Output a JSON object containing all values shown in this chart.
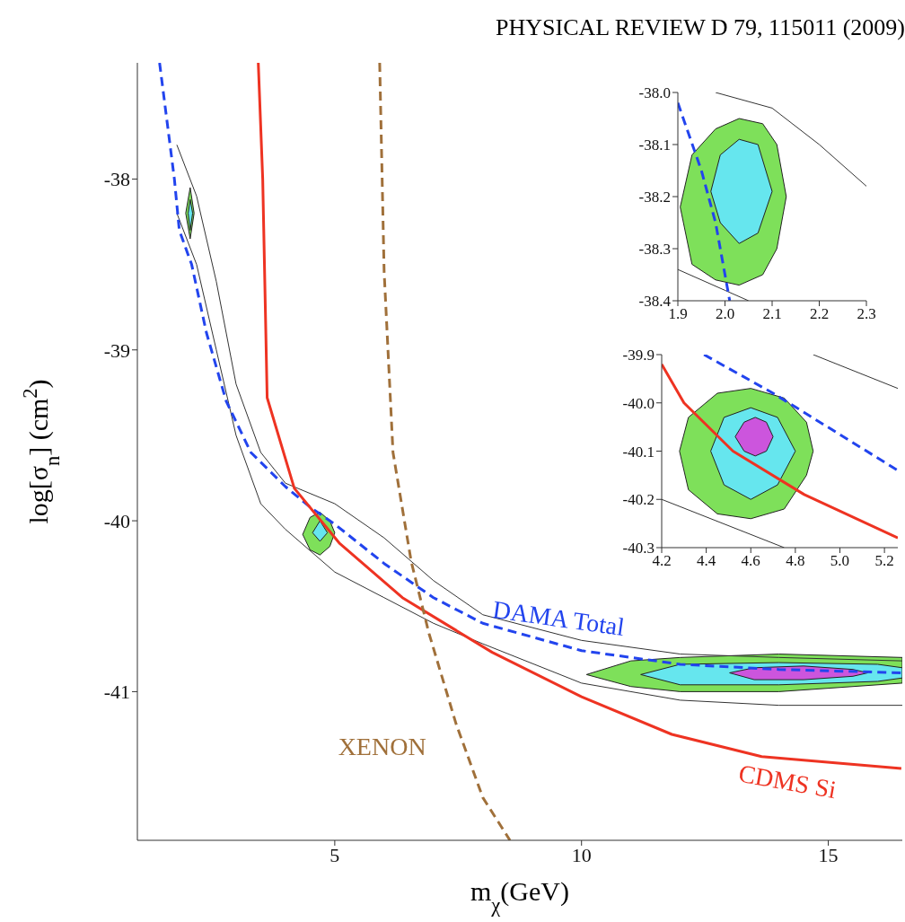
{
  "chart_data": [
    {
      "type": "line",
      "title": "PHYSICAL REVIEW D 79, 115011 (2009)",
      "xlabel": "m$_{χ}$(GeV)",
      "ylabel": "log[σ$_{n}$] (cm$^{2}$)",
      "xlim": [
        1,
        16.5
      ],
      "ylim": [
        -41.87,
        -37.32
      ],
      "xticks": [
        5,
        10,
        15
      ],
      "yticks": [
        -38,
        -39,
        -40,
        -41
      ],
      "series": [
        {
          "type": "line",
          "color": "#333333",
          "line_style": "solid",
          "x": [
            1.8,
            2.2,
            2.6,
            3.0,
            3.5,
            4,
            5,
            6,
            7,
            8,
            10,
            12,
            14,
            16.5
          ],
          "values": [
            -37.8,
            -38.1,
            -38.6,
            -39.2,
            -39.6,
            -39.78,
            -39.9,
            -40.1,
            -40.35,
            -40.55,
            -40.7,
            -40.78,
            -40.8,
            -40.82
          ]
        },
        {
          "type": "line",
          "color": "#333333",
          "line_style": "solid",
          "x": [
            1.8,
            2.2,
            2.6,
            3.0,
            3.5,
            4,
            5,
            6,
            7,
            8,
            10,
            12,
            14,
            16.5
          ],
          "values": [
            -38.2,
            -38.5,
            -39.0,
            -39.5,
            -39.9,
            -40.05,
            -40.3,
            -40.45,
            -40.6,
            -40.72,
            -40.95,
            -41.05,
            -41.08,
            -41.08
          ]
        },
        {
          "type": "area",
          "color": "#7ee05a",
          "x": [
            10.1,
            11,
            12,
            14,
            16.5,
            16.5,
            14,
            12,
            11,
            10.1
          ],
          "values": [
            -40.9,
            -40.97,
            -41.0,
            -41.0,
            -40.95,
            -40.8,
            -40.78,
            -40.8,
            -40.82,
            -40.9
          ]
        },
        {
          "type": "area",
          "color": "#66e6ee",
          "x": [
            11.2,
            12,
            14,
            16,
            16.5,
            16.5,
            16,
            14,
            12,
            11.2
          ],
          "values": [
            -40.9,
            -40.96,
            -40.96,
            -40.94,
            -40.92,
            -40.86,
            -40.84,
            -40.83,
            -40.84,
            -40.9
          ]
        },
        {
          "type": "area",
          "color": "#cc55dd",
          "x": [
            13,
            13.5,
            14.5,
            15.5,
            15.8,
            15.5,
            14.5,
            13.5,
            13
          ],
          "values": [
            -40.89,
            -40.93,
            -40.93,
            -40.91,
            -40.89,
            -40.87,
            -40.85,
            -40.86,
            -40.89
          ]
        },
        {
          "type": "area",
          "color": "#7ee05a",
          "x": [
            4.35,
            4.5,
            4.7,
            4.9,
            5.0,
            4.9,
            4.7,
            4.5,
            4.35
          ],
          "values": [
            -40.08,
            -40.17,
            -40.2,
            -40.15,
            -40.07,
            -40.0,
            -39.95,
            -39.98,
            -40.08
          ]
        },
        {
          "type": "area",
          "color": "#66e6ee",
          "x": [
            4.55,
            4.7,
            4.85,
            4.7,
            4.55
          ],
          "values": [
            -40.07,
            -40.12,
            -40.07,
            -40.0,
            -40.07
          ]
        },
        {
          "type": "area",
          "color": "#7ee05a",
          "x": [
            1.98,
            2.07,
            2.15,
            2.07,
            1.98
          ],
          "values": [
            -38.2,
            -38.35,
            -38.2,
            -38.05,
            -38.2
          ]
        },
        {
          "type": "area",
          "color": "#66e6ee",
          "x": [
            2.03,
            2.07,
            2.12,
            2.07,
            2.03
          ],
          "values": [
            -38.2,
            -38.3,
            -38.2,
            -38.12,
            -38.2
          ]
        },
        {
          "type": "line",
          "name": "DAMA Total",
          "color": "#2244ee",
          "line_style": "dashed",
          "x": [
            1.45,
            1.75,
            1.85,
            2.1,
            2.4,
            2.8,
            3.3,
            4,
            4.5,
            5,
            6,
            7,
            8,
            10,
            12,
            14,
            16.5
          ],
          "values": [
            -37.32,
            -38.0,
            -38.3,
            -38.5,
            -38.9,
            -39.3,
            -39.6,
            -39.8,
            -39.92,
            -40.02,
            -40.25,
            -40.45,
            -40.6,
            -40.76,
            -40.84,
            -40.87,
            -40.89
          ]
        },
        {
          "type": "line",
          "name": "CDMS Si",
          "color": "#ee3322",
          "line_style": "solid",
          "x": [
            3.45,
            3.54,
            3.63,
            4.18,
            5.09,
            6.37,
            8.19,
            10.0,
            11.83,
            13.65,
            16.48
          ],
          "values": [
            -37.32,
            -38.0,
            -39.28,
            -39.81,
            -40.13,
            -40.45,
            -40.77,
            -41.03,
            -41.25,
            -41.38,
            -41.45
          ]
        },
        {
          "type": "line",
          "name": "XENON",
          "color": "#a0703a",
          "line_style": "dashed",
          "x": [
            5.91,
            6.0,
            6.18,
            6.55,
            6.91,
            7.46,
            8.0,
            8.55
          ],
          "values": [
            -37.32,
            -38.54,
            -39.6,
            -40.24,
            -40.66,
            -41.19,
            -41.62,
            -41.87
          ]
        }
      ]
    },
    {
      "type": "line",
      "xlim": [
        1.9,
        2.3
      ],
      "ylim": [
        -38.4,
        -38.0
      ],
      "xticks": [
        1.9,
        {
          "value": 2.0,
          "label": "2.0"
        },
        2.1,
        2.2,
        2.3
      ],
      "yticks": [
        {
          "value": -38.0,
          "label": "-38.0"
        },
        -38.1,
        -38.2,
        -38.3,
        -38.4
      ],
      "series": [
        {
          "type": "area",
          "color": "#7ee05a",
          "x": [
            1.905,
            1.93,
            1.98,
            2.03,
            2.08,
            2.11,
            2.13,
            2.11,
            2.08,
            2.03,
            1.98,
            1.93,
            1.905
          ],
          "values": [
            -38.22,
            -38.33,
            -38.36,
            -38.37,
            -38.35,
            -38.3,
            -38.2,
            -38.1,
            -38.06,
            -38.05,
            -38.07,
            -38.12,
            -38.22
          ]
        },
        {
          "type": "area",
          "color": "#66e6ee",
          "x": [
            1.97,
            1.99,
            2.03,
            2.07,
            2.1,
            2.07,
            2.03,
            1.99,
            1.97
          ],
          "values": [
            -38.19,
            -38.25,
            -38.29,
            -38.27,
            -38.19,
            -38.1,
            -38.09,
            -38.12,
            -38.19
          ]
        },
        {
          "type": "line",
          "color": "#333333",
          "line_style": "solid",
          "x": [
            1.98,
            2.1,
            2.2,
            2.3
          ],
          "values": [
            -38.0,
            -38.03,
            -38.1,
            -38.18
          ]
        },
        {
          "type": "line",
          "color": "#333333",
          "line_style": "solid",
          "x": [
            1.9,
            2.0,
            2.05
          ],
          "values": [
            -38.34,
            -38.38,
            -38.4
          ]
        },
        {
          "type": "line",
          "color": "#2244ee",
          "line_style": "dashed",
          "x": [
            1.9,
            1.95,
            1.98,
            2.01
          ],
          "values": [
            -38.02,
            -38.15,
            -38.25,
            -38.4
          ]
        }
      ]
    },
    {
      "type": "line",
      "xlim": [
        4.2,
        5.26
      ],
      "ylim": [
        -40.3,
        -39.9
      ],
      "xticks": [
        4.2,
        4.4,
        4.6,
        4.8,
        {
          "value": 5.0,
          "label": "5.0"
        },
        5.2
      ],
      "yticks": [
        -39.9,
        {
          "value": -40.0,
          "label": "-40.0"
        },
        -40.1,
        -40.2,
        -40.3
      ],
      "series": [
        {
          "type": "area",
          "color": "#7ee05a",
          "x": [
            4.28,
            4.32,
            4.45,
            4.6,
            4.75,
            4.85,
            4.88,
            4.85,
            4.75,
            4.6,
            4.45,
            4.32,
            4.28
          ],
          "values": [
            -40.1,
            -40.18,
            -40.23,
            -40.24,
            -40.22,
            -40.15,
            -40.1,
            -40.04,
            -39.99,
            -39.97,
            -39.98,
            -40.03,
            -40.1
          ]
        },
        {
          "type": "area",
          "color": "#66e6ee",
          "x": [
            4.42,
            4.48,
            4.6,
            4.72,
            4.8,
            4.72,
            4.6,
            4.48,
            4.42
          ],
          "values": [
            -40.1,
            -40.17,
            -40.2,
            -40.17,
            -40.1,
            -40.03,
            -40.01,
            -40.03,
            -40.1
          ]
        },
        {
          "type": "area",
          "color": "#cc55dd",
          "x": [
            4.53,
            4.57,
            4.62,
            4.67,
            4.7,
            4.67,
            4.62,
            4.57,
            4.53
          ],
          "values": [
            -40.07,
            -40.1,
            -40.11,
            -40.1,
            -40.07,
            -40.04,
            -40.03,
            -40.04,
            -40.07
          ]
        },
        {
          "type": "line",
          "color": "#333333",
          "line_style": "solid",
          "x": [
            4.88,
            5.26
          ],
          "values": [
            -39.9,
            -39.97
          ]
        },
        {
          "type": "line",
          "color": "#333333",
          "line_style": "solid",
          "x": [
            4.2,
            4.75
          ],
          "values": [
            -40.2,
            -40.3
          ]
        },
        {
          "type": "line",
          "color": "#ee3322",
          "line_style": "solid",
          "x": [
            4.2,
            4.3,
            4.52,
            4.84,
            5.26
          ],
          "values": [
            -39.92,
            -40.0,
            -40.1,
            -40.19,
            -40.28
          ]
        },
        {
          "type": "line",
          "color": "#2244ee",
          "line_style": "dashed",
          "x": [
            4.39,
            4.7,
            5.26
          ],
          "values": [
            -39.9,
            -39.98,
            -40.14
          ]
        }
      ]
    }
  ]
}
